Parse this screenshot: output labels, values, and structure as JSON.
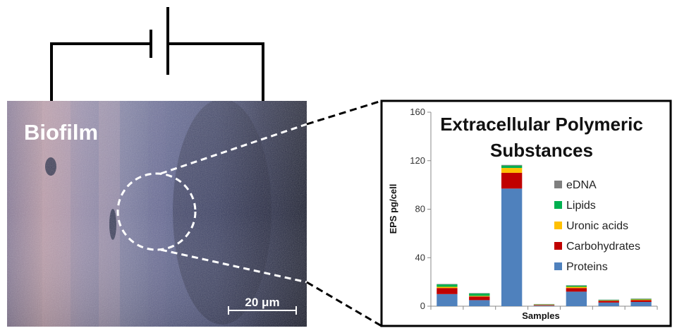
{
  "biofilm_label": "Biofilm",
  "scale_bar_label": "20 μm",
  "chart_data": {
    "type": "bar",
    "stacked": true,
    "title_lines": [
      "Extracellular Polymeric",
      "Substances"
    ],
    "xlabel": "Samples",
    "ylabel": "EPS   pg/cell",
    "ylim": [
      0,
      160
    ],
    "yticks": [
      0,
      40,
      80,
      120,
      160
    ],
    "categories": [
      "",
      "",
      "",
      "",
      "",
      "",
      ""
    ],
    "series": [
      {
        "name": "Proteins",
        "color": "#4f81bd",
        "values": [
          10,
          5,
          97,
          0.5,
          12,
          3,
          3.5
        ]
      },
      {
        "name": "Carbohydrates",
        "color": "#c00000",
        "values": [
          5,
          3,
          13,
          0.5,
          3,
          1.5,
          1.5
        ]
      },
      {
        "name": "Uronic acids",
        "color": "#ffc000",
        "values": [
          1,
          0.5,
          4,
          0.3,
          1,
          0.3,
          0.5
        ]
      },
      {
        "name": "Lipids",
        "color": "#00b050",
        "values": [
          2,
          2,
          2,
          0.3,
          1,
          0.4,
          0.5
        ]
      },
      {
        "name": "eDNA",
        "color": "#7f7f7f",
        "values": [
          0.3,
          0.3,
          0.5,
          0.2,
          0.3,
          0.2,
          0.3
        ]
      }
    ],
    "legend_position": "right",
    "legend_order": [
      "eDNA",
      "Lipids",
      "Uronic acids",
      "Carbohydrates",
      "Proteins"
    ],
    "grid": false
  }
}
